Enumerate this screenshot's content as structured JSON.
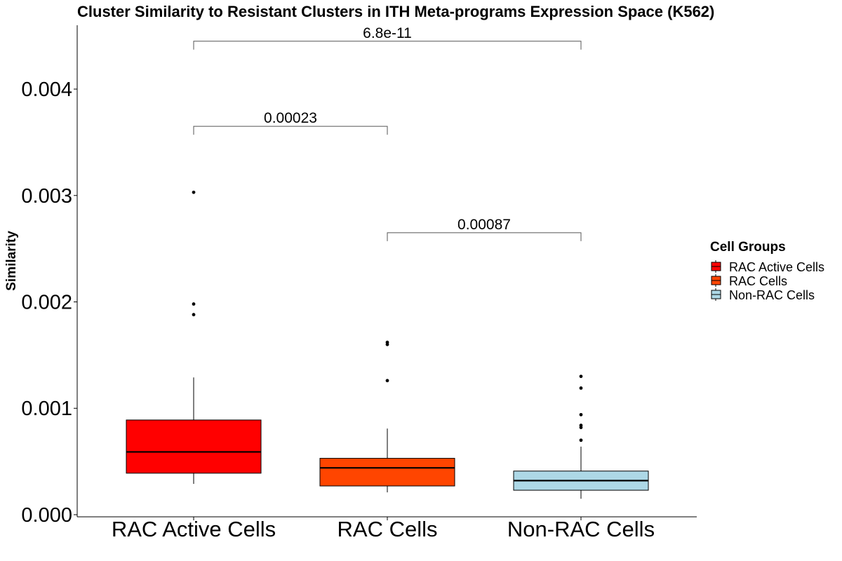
{
  "chart_data": {
    "type": "box",
    "title": "Cluster Similarity to Resistant Clusters in ITH Meta-programs Expression Space (K562)",
    "xlabel": "",
    "ylabel": "Similarity",
    "ylim": [
      -2e-05,
      0.0046
    ],
    "yticks": [
      0.0,
      0.001,
      0.002,
      0.003,
      0.004
    ],
    "ytick_labels": [
      "0.000",
      "0.001",
      "0.002",
      "0.003",
      "0.004"
    ],
    "categories": [
      "RAC Active Cells",
      "RAC Cells",
      "Non-RAC Cells"
    ],
    "colors": [
      "#ff0000",
      "#ff4500",
      "#add8e6"
    ],
    "boxes": [
      {
        "name": "RAC Active Cells",
        "whisker_low": 0.00029,
        "q1": 0.00039,
        "median": 0.00059,
        "q3": 0.00089,
        "whisker_high": 0.00129,
        "outliers": [
          0.00188,
          0.00198,
          0.00303
        ]
      },
      {
        "name": "RAC Cells",
        "whisker_low": 0.00021,
        "q1": 0.00027,
        "median": 0.00044,
        "q3": 0.00053,
        "whisker_high": 0.00081,
        "outliers": [
          0.00126,
          0.0016,
          0.00162
        ]
      },
      {
        "name": "Non-RAC Cells",
        "whisker_low": 0.00015,
        "q1": 0.00023,
        "median": 0.00032,
        "q3": 0.00041,
        "whisker_high": 0.00064,
        "outliers": [
          0.0007,
          0.00082,
          0.00084,
          0.00094,
          0.00119,
          0.0013
        ]
      }
    ],
    "comparisons": [
      {
        "from": 0,
        "to": 2,
        "y": 0.00445,
        "label": "6.8e-11"
      },
      {
        "from": 0,
        "to": 1,
        "y": 0.00365,
        "label": "0.00023"
      },
      {
        "from": 1,
        "to": 2,
        "y": 0.00265,
        "label": "0.00087"
      }
    ],
    "legend": {
      "title": "Cell Groups",
      "position": "right",
      "entries": [
        "RAC Active Cells",
        "RAC Cells",
        "Non-RAC Cells"
      ]
    },
    "grid": false
  }
}
